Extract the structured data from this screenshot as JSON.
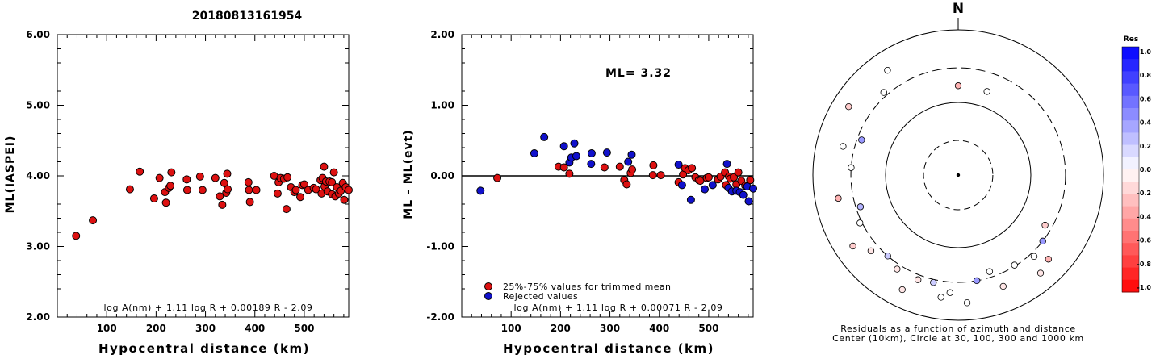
{
  "page_title": "20180813161954",
  "chart_data": [
    {
      "id": "left",
      "type": "scatter",
      "xlabel": "Hypocentral distance (km)",
      "ylabel": "ML(IASPEI)",
      "xlim": [
        0,
        590
      ],
      "ylim": [
        2.0,
        6.0
      ],
      "xticks": [
        100,
        200,
        300,
        400,
        500
      ],
      "yticks": [
        2.0,
        3.0,
        4.0,
        5.0,
        6.0
      ],
      "ytick_labels": [
        "2.00",
        "3.00",
        "4.00",
        "5.00",
        "6.00"
      ],
      "formula": "log A(nm) + 1.11 log R + 0.00189 R - 2.09",
      "series": [
        {
          "color": "#dd1111",
          "points": [
            [
              38,
              3.15
            ],
            [
              72,
              3.37
            ],
            [
              147,
              3.81
            ],
            [
              167,
              4.06
            ],
            [
              196,
              3.68
            ],
            [
              207,
              3.97
            ],
            [
              218,
              3.77
            ],
            [
              220,
              3.62
            ],
            [
              226,
              3.83
            ],
            [
              229,
              3.86
            ],
            [
              231,
              4.05
            ],
            [
              262,
              3.95
            ],
            [
              263,
              3.8
            ],
            [
              289,
              3.99
            ],
            [
              294,
              3.8
            ],
            [
              320,
              3.97
            ],
            [
              329,
              3.71
            ],
            [
              334,
              3.59
            ],
            [
              338,
              3.9
            ],
            [
              342,
              3.76
            ],
            [
              344,
              4.03
            ],
            [
              345,
              3.81
            ],
            [
              387,
              3.91
            ],
            [
              388,
              3.8
            ],
            [
              390,
              3.63
            ],
            [
              403,
              3.8
            ],
            [
              439,
              4.0
            ],
            [
              446,
              3.75
            ],
            [
              448,
              3.91
            ],
            [
              452,
              3.97
            ],
            [
              459,
              3.96
            ],
            [
              464,
              3.53
            ],
            [
              466,
              3.98
            ],
            [
              473,
              3.84
            ],
            [
              480,
              3.77
            ],
            [
              483,
              3.8
            ],
            [
              492,
              3.7
            ],
            [
              496,
              3.87
            ],
            [
              500,
              3.88
            ],
            [
              508,
              3.8
            ],
            [
              519,
              3.83
            ],
            [
              524,
              3.81
            ],
            [
              533,
              3.94
            ],
            [
              535,
              3.75
            ],
            [
              537,
              3.97
            ],
            [
              540,
              4.13
            ],
            [
              541,
              3.85
            ],
            [
              544,
              3.92
            ],
            [
              547,
              3.78
            ],
            [
              551,
              3.92
            ],
            [
              556,
              3.74
            ],
            [
              556,
              3.91
            ],
            [
              560,
              4.05
            ],
            [
              563,
              3.71
            ],
            [
              566,
              3.84
            ],
            [
              570,
              3.75
            ],
            [
              574,
              3.79
            ],
            [
              578,
              3.9
            ],
            [
              581,
              3.66
            ],
            [
              584,
              3.84
            ],
            [
              590,
              3.8
            ]
          ]
        }
      ]
    },
    {
      "id": "middle",
      "type": "scatter",
      "xlabel": "Hypocentral distance (km)",
      "ylabel": "ML - ML(evt)",
      "xlim": [
        0,
        590
      ],
      "ylim": [
        -2.0,
        2.0
      ],
      "xticks": [
        100,
        200,
        300,
        400,
        500
      ],
      "yticks": [
        -2.0,
        -1.0,
        0.0,
        1.0,
        2.0
      ],
      "ytick_labels": [
        "-2.00",
        "-1.00",
        "0.00",
        "1.00",
        "2.00"
      ],
      "annotation": "ML= 3.32",
      "formula": "log A(nm) + 1.11 log R + 0.00071 R - 2.09",
      "series": [
        {
          "name": "25%-75% values for trimmed mean",
          "color": "#dd1111",
          "points": [
            [
              72,
              -0.03
            ],
            [
              196,
              0.13
            ],
            [
              207,
              0.12
            ],
            [
              218,
              0.03
            ],
            [
              289,
              0.12
            ],
            [
              320,
              0.13
            ],
            [
              329,
              -0.06
            ],
            [
              334,
              -0.12
            ],
            [
              342,
              0.04
            ],
            [
              345,
              0.09
            ],
            [
              387,
              0.01
            ],
            [
              388,
              0.15
            ],
            [
              403,
              0.01
            ],
            [
              439,
              -0.09
            ],
            [
              448,
              0.02
            ],
            [
              452,
              0.11
            ],
            [
              459,
              0.08
            ],
            [
              466,
              0.11
            ],
            [
              473,
              -0.02
            ],
            [
              480,
              -0.06
            ],
            [
              483,
              -0.07
            ],
            [
              496,
              -0.03
            ],
            [
              500,
              -0.02
            ],
            [
              519,
              -0.05
            ],
            [
              524,
              -0.01
            ],
            [
              533,
              0.05
            ],
            [
              535,
              -0.13
            ],
            [
              541,
              -0.01
            ],
            [
              544,
              -0.04
            ],
            [
              551,
              -0.02
            ],
            [
              556,
              -0.12
            ],
            [
              560,
              0.05
            ],
            [
              566,
              -0.07
            ],
            [
              574,
              -0.14
            ],
            [
              584,
              -0.06
            ]
          ]
        },
        {
          "name": "Rejected values",
          "color": "#1111cc",
          "points": [
            [
              38,
              -0.21
            ],
            [
              147,
              0.32
            ],
            [
              167,
              0.55
            ],
            [
              207,
              0.42
            ],
            [
              218,
              0.19
            ],
            [
              222,
              0.26
            ],
            [
              228,
              0.46
            ],
            [
              232,
              0.28
            ],
            [
              262,
              0.17
            ],
            [
              263,
              0.32
            ],
            [
              294,
              0.33
            ],
            [
              337,
              0.2
            ],
            [
              344,
              0.3
            ],
            [
              439,
              0.16
            ],
            [
              446,
              -0.13
            ],
            [
              464,
              -0.34
            ],
            [
              492,
              -0.19
            ],
            [
              508,
              -0.13
            ],
            [
              537,
              0.17
            ],
            [
              540,
              -0.17
            ],
            [
              547,
              -0.22
            ],
            [
              556,
              -0.21
            ],
            [
              563,
              -0.23
            ],
            [
              570,
              -0.27
            ],
            [
              578,
              -0.15
            ],
            [
              581,
              -0.36
            ],
            [
              590,
              -0.18
            ]
          ]
        }
      ]
    }
  ],
  "azimuth_plot": {
    "north_label": "N",
    "caption_line1": "Residuals as a function of azimuth and distance",
    "caption_line2": "Center (10km), Circle at 30, 100, 300 and 1000 km",
    "points": [
      {
        "azimuth": 0,
        "distance": 170,
        "res": -0.3
      },
      {
        "azimuth": 19,
        "distance": 165,
        "res": 0.0
      },
      {
        "azimuth": 120,
        "distance": 240,
        "res": -0.2
      },
      {
        "azimuth": 128,
        "distance": 300,
        "res": 0.4
      },
      {
        "azimuth": 133,
        "distance": 500,
        "res": -0.3
      },
      {
        "azimuth": 137,
        "distance": 340,
        "res": 0.0
      },
      {
        "azimuth": 140,
        "distance": 580,
        "res": -0.1
      },
      {
        "azimuth": 148,
        "distance": 290,
        "res": 0.0
      },
      {
        "azimuth": 158,
        "distance": 450,
        "res": -0.1
      },
      {
        "azimuth": 162,
        "distance": 250,
        "res": 0.0
      },
      {
        "azimuth": 170,
        "distance": 300,
        "res": 0.4
      },
      {
        "azimuth": 176,
        "distance": 580,
        "res": 0.0
      },
      {
        "azimuth": 184,
        "distance": 420,
        "res": 0.0
      },
      {
        "azimuth": 188,
        "distance": 500,
        "res": 0.0
      },
      {
        "azimuth": 193,
        "distance": 330,
        "res": 0.2
      },
      {
        "azimuth": 201,
        "distance": 350,
        "res": -0.1
      },
      {
        "azimuth": 206,
        "distance": 570,
        "res": -0.1
      },
      {
        "azimuth": 213,
        "distance": 350,
        "res": -0.1
      },
      {
        "azimuth": 221,
        "distance": 300,
        "res": 0.2
      },
      {
        "azimuth": 229,
        "distance": 390,
        "res": -0.1
      },
      {
        "azimuth": 236,
        "distance": 560,
        "res": -0.2
      },
      {
        "azimuth": 244,
        "distance": 320,
        "res": 0.0
      },
      {
        "azimuth": 252,
        "distance": 260,
        "res": 0.3
      },
      {
        "azimuth": 259,
        "distance": 480,
        "res": -0.3
      },
      {
        "azimuth": 274,
        "distance": 300,
        "res": 0.0
      },
      {
        "azimuth": 284,
        "distance": 430,
        "res": 0.0
      },
      {
        "azimuth": 290,
        "distance": 260,
        "res": 0.4
      },
      {
        "azimuth": 302,
        "distance": 600,
        "res": -0.2
      },
      {
        "azimuth": 318,
        "distance": 340,
        "res": 0.0
      },
      {
        "azimuth": 326,
        "distance": 550,
        "res": 0.0
      }
    ]
  },
  "colorbar": {
    "title": "Res",
    "tick_labels": [
      "1.0",
      "0.8",
      "0.6",
      "0.4",
      "0.2",
      "0.0",
      "-0.2",
      "-0.4",
      "-0.6",
      "-0.8",
      "-1.0"
    ],
    "max_color": "#0000ff",
    "mid_color": "#ffffff",
    "min_color": "#ff0000"
  }
}
